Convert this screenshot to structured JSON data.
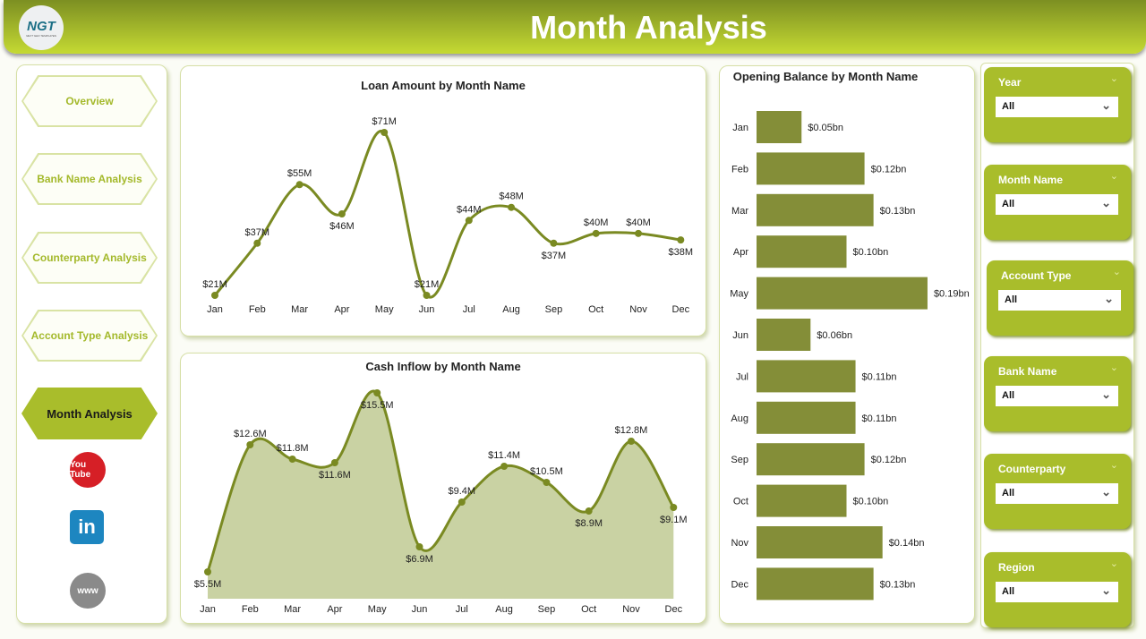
{
  "header": {
    "title": "Month Analysis",
    "logo_text": "NGT",
    "logo_sub": "NEXT GEN TEMPLATES"
  },
  "nav": [
    {
      "label": "Overview"
    },
    {
      "label": "Bank Name Analysis"
    },
    {
      "label": "Counterparty Analysis"
    },
    {
      "label": "Account Type Analysis"
    },
    {
      "label": "Month Analysis",
      "active": true
    }
  ],
  "social": [
    {
      "icon": "youtube-icon",
      "label": "You Tube",
      "color": "#d61f26"
    },
    {
      "icon": "linkedin-icon",
      "label": "in",
      "color": "#1d86c0"
    },
    {
      "icon": "globe-icon",
      "label": "www",
      "color": "#8a8a8a"
    }
  ],
  "filters": [
    {
      "label": "Year",
      "value": "All"
    },
    {
      "label": "Month Name",
      "value": "All"
    },
    {
      "label": "Account Type",
      "value": "All"
    },
    {
      "label": "Bank Name",
      "value": "All"
    },
    {
      "label": "Counterparty",
      "value": "All"
    },
    {
      "label": "Region",
      "value": "All"
    }
  ],
  "chart_data": [
    {
      "type": "line",
      "title": "Loan Amount by Month Name",
      "categories": [
        "Jan",
        "Feb",
        "Mar",
        "Apr",
        "May",
        "Jun",
        "Jul",
        "Aug",
        "Sep",
        "Oct",
        "Nov",
        "Dec"
      ],
      "values": [
        21,
        37,
        55,
        46,
        71,
        21,
        44,
        48,
        37,
        40,
        40,
        38
      ],
      "labels": [
        "$21M",
        "$37M",
        "$55M",
        "$46M",
        "$71M",
        "$21M",
        "$44M",
        "$48M",
        "$37M",
        "$40M",
        "$40M",
        "$38M"
      ],
      "color": "#7a8a22"
    },
    {
      "type": "area",
      "title": "Cash Inflow by Month Name",
      "categories": [
        "Jan",
        "Feb",
        "Mar",
        "Apr",
        "May",
        "Jun",
        "Jul",
        "Aug",
        "Sep",
        "Oct",
        "Nov",
        "Dec"
      ],
      "values": [
        5.5,
        12.6,
        11.8,
        11.6,
        15.5,
        6.9,
        9.4,
        11.4,
        10.5,
        8.9,
        12.8,
        9.1
      ],
      "labels": [
        "$5.5M",
        "$12.6M",
        "$11.8M",
        "$11.6M",
        "$15.5M",
        "$6.9M",
        "$9.4M",
        "$11.4M",
        "$10.5M",
        "$8.9M",
        "$12.8M",
        "$9.1M"
      ],
      "color": "#7a8a22",
      "fill": "#c9d2a3"
    },
    {
      "type": "bar",
      "orientation": "horizontal",
      "title": "Opening Balance by Month Name",
      "categories": [
        "Jan",
        "Feb",
        "Mar",
        "Apr",
        "May",
        "Jun",
        "Jul",
        "Aug",
        "Sep",
        "Oct",
        "Nov",
        "Dec"
      ],
      "values": [
        0.05,
        0.12,
        0.13,
        0.1,
        0.19,
        0.06,
        0.11,
        0.11,
        0.12,
        0.1,
        0.14,
        0.13
      ],
      "labels": [
        "$0.05bn",
        "$0.12bn",
        "$0.13bn",
        "$0.10bn",
        "$0.19bn",
        "$0.06bn",
        "$0.11bn",
        "$0.11bn",
        "$0.12bn",
        "$0.10bn",
        "$0.14bn",
        "$0.13bn"
      ],
      "color": "#848e38"
    }
  ]
}
